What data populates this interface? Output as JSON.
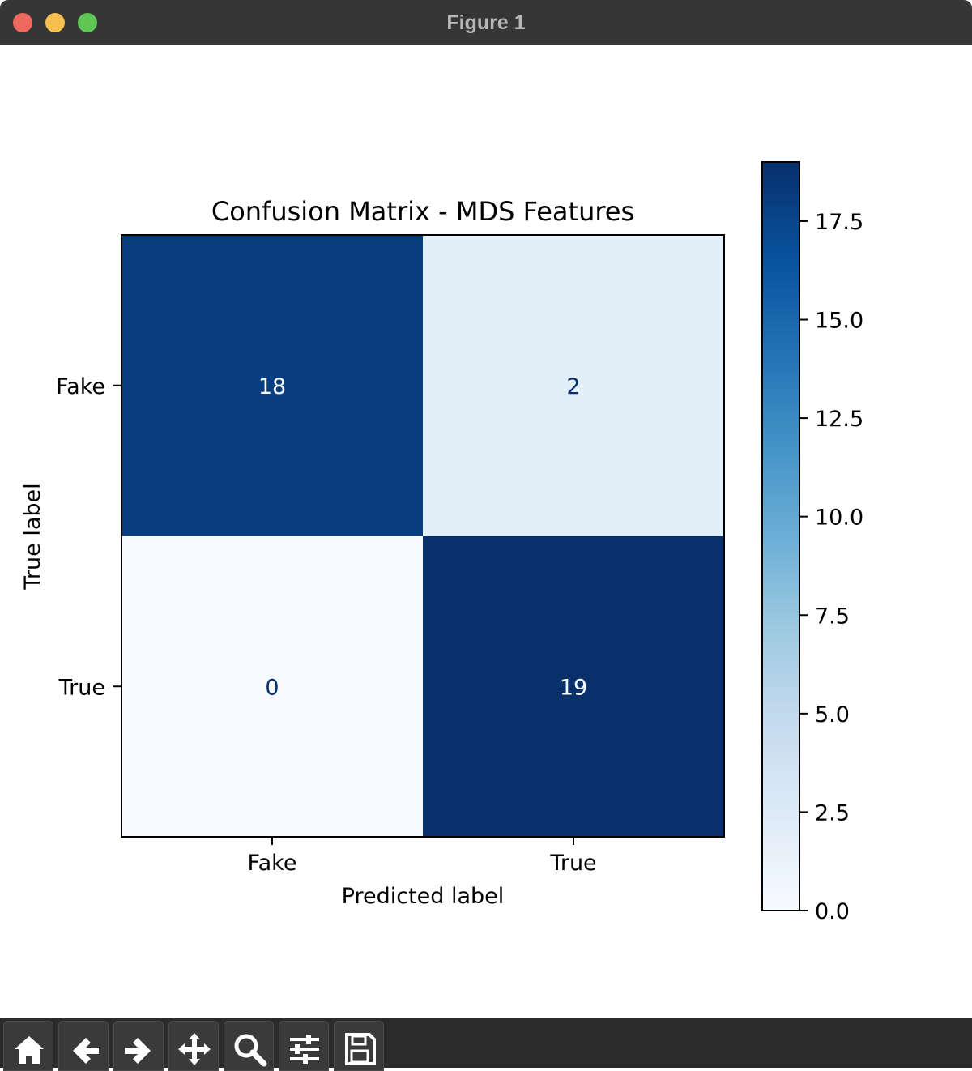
{
  "window": {
    "title": "Figure 1"
  },
  "toolbar": {
    "tools": [
      {
        "name": "home-icon"
      },
      {
        "name": "back-arrow-icon"
      },
      {
        "name": "forward-arrow-icon"
      },
      {
        "name": "pan-move-icon"
      },
      {
        "name": "zoom-magnifier-icon"
      },
      {
        "name": "configure-subplots-icon"
      },
      {
        "name": "save-floppy-icon"
      }
    ]
  },
  "colors": {
    "titlebar": "#363636",
    "toolbar": "#2b2b2b",
    "cmap": "Blues"
  },
  "chart_data": {
    "type": "heatmap",
    "title": "Confusion Matrix - MDS Features",
    "xlabel": "Predicted label",
    "ylabel": "True label",
    "x_categories": [
      "Fake",
      "True"
    ],
    "y_categories": [
      "Fake",
      "True"
    ],
    "values": [
      [
        18,
        2
      ],
      [
        0,
        19
      ]
    ],
    "colorbar": {
      "range": [
        0,
        19
      ],
      "ticks": [
        "0.0",
        "2.5",
        "5.0",
        "7.5",
        "10.0",
        "12.5",
        "15.0",
        "17.5"
      ]
    }
  }
}
